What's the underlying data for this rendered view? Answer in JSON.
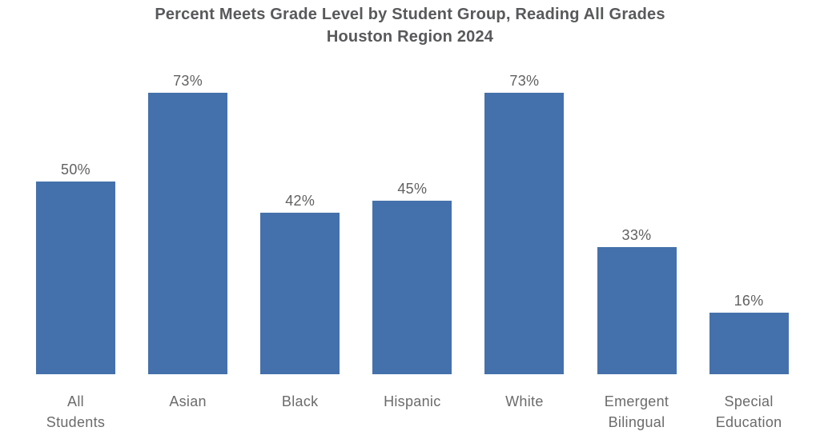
{
  "title": {
    "line1": "Percent Meets Grade Level by Student Group, Reading All Grades",
    "line2": "Houston Region 2024",
    "color": "#58595b"
  },
  "chart_data": {
    "type": "bar",
    "title": "Percent Meets Grade Level by Student Group, Reading All Grades Houston Region 2024",
    "categories": [
      "All Students",
      "Asian",
      "Black",
      "Hispanic",
      "White",
      "Emergent Bilingual",
      "Special Education"
    ],
    "category_lines": [
      [
        "All",
        "Students"
      ],
      [
        "Asian"
      ],
      [
        "Black"
      ],
      [
        "Hispanic"
      ],
      [
        "White"
      ],
      [
        "Emergent",
        "Bilingual"
      ],
      [
        "Special",
        "Education"
      ]
    ],
    "values": [
      50,
      73,
      42,
      45,
      73,
      33,
      16
    ],
    "data_labels": [
      "50%",
      "73%",
      "42%",
      "45%",
      "73%",
      "33%",
      "16%"
    ],
    "unit": "%",
    "xlabel": "",
    "ylabel": "",
    "ylim": [
      0,
      100
    ],
    "grid": false,
    "legend": false,
    "bar_color": "#4471ab",
    "data_label_color": "#616161",
    "category_label_color": "#6b6b6b"
  }
}
